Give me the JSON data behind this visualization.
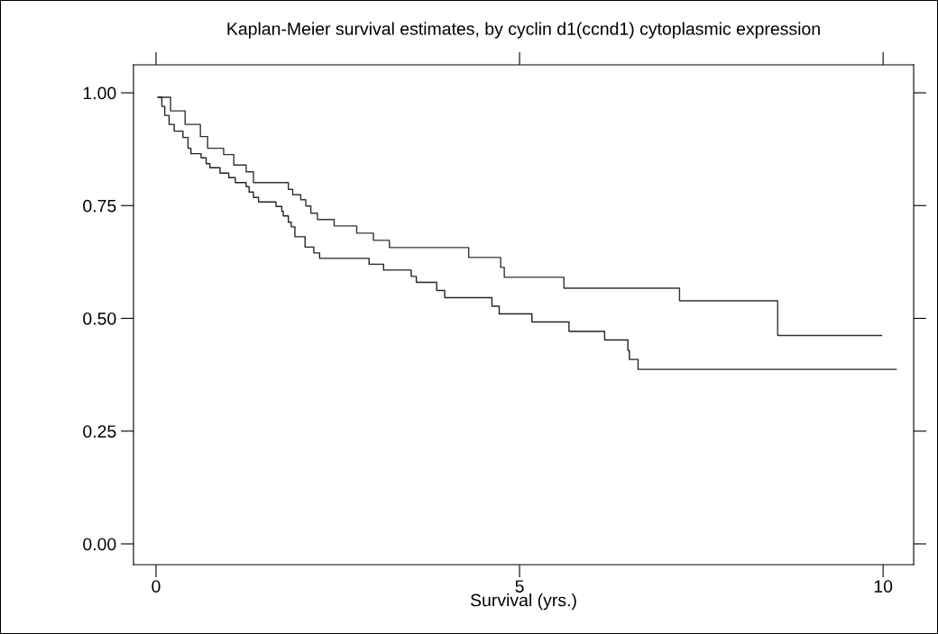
{
  "chart_data": {
    "type": "step",
    "title": "Kaplan-Meier survival estimates, by cyclin d1(ccnd1) cytoplasmic expression",
    "xlabel": "Survival (yrs.)",
    "xlim": [
      -0.31,
      10.42
    ],
    "ylim": [
      -0.046,
      1.062
    ],
    "xticks": [
      0,
      5,
      10
    ],
    "yticks": [
      {
        "value": 0,
        "label": "0.00"
      },
      {
        "value": 0.25,
        "label": "0.25"
      },
      {
        "value": 0.5,
        "label": "0.50"
      },
      {
        "value": 0.75,
        "label": "0.75"
      },
      {
        "value": 1,
        "label": "1.00"
      }
    ],
    "grid": false,
    "marker": "none",
    "line_style": "solid",
    "series": [
      {
        "color": "#333333",
        "x": [
          0.03,
          0.2,
          0.4,
          0.61,
          0.71,
          0.93,
          1.07,
          1.24,
          1.34,
          1.82,
          1.88,
          1.99,
          2.06,
          2.13,
          2.22,
          2.45,
          2.76,
          2.99,
          3.21,
          4.3,
          4.74,
          4.79,
          5.61,
          7.2,
          8.55,
          9.98
        ],
        "values": [
          0.99,
          0.96,
          0.93,
          0.903,
          0.877,
          0.863,
          0.84,
          0.825,
          0.801,
          0.786,
          0.774,
          0.763,
          0.749,
          0.733,
          0.719,
          0.705,
          0.689,
          0.673,
          0.657,
          0.635,
          0.613,
          0.591,
          0.567,
          0.539,
          0.462,
          0.462
        ]
      },
      {
        "color": "#222222",
        "x": [
          0.03,
          0.08,
          0.12,
          0.18,
          0.25,
          0.37,
          0.44,
          0.48,
          0.62,
          0.69,
          0.74,
          0.88,
          1.0,
          1.09,
          1.24,
          1.28,
          1.34,
          1.41,
          1.65,
          1.73,
          1.75,
          1.82,
          1.86,
          1.91,
          2.05,
          2.17,
          2.25,
          2.93,
          3.13,
          3.51,
          3.58,
          3.86,
          3.97,
          4.62,
          4.72,
          5.17,
          5.68,
          6.17,
          6.49,
          6.51,
          6.63,
          10.18
        ],
        "values": [
          0.99,
          0.97,
          0.95,
          0.93,
          0.915,
          0.901,
          0.877,
          0.865,
          0.856,
          0.843,
          0.834,
          0.822,
          0.812,
          0.801,
          0.792,
          0.78,
          0.768,
          0.758,
          0.748,
          0.737,
          0.727,
          0.713,
          0.703,
          0.681,
          0.658,
          0.645,
          0.633,
          0.62,
          0.607,
          0.593,
          0.58,
          0.562,
          0.546,
          0.527,
          0.51,
          0.492,
          0.471,
          0.452,
          0.429,
          0.409,
          0.387,
          0.387
        ]
      }
    ]
  }
}
